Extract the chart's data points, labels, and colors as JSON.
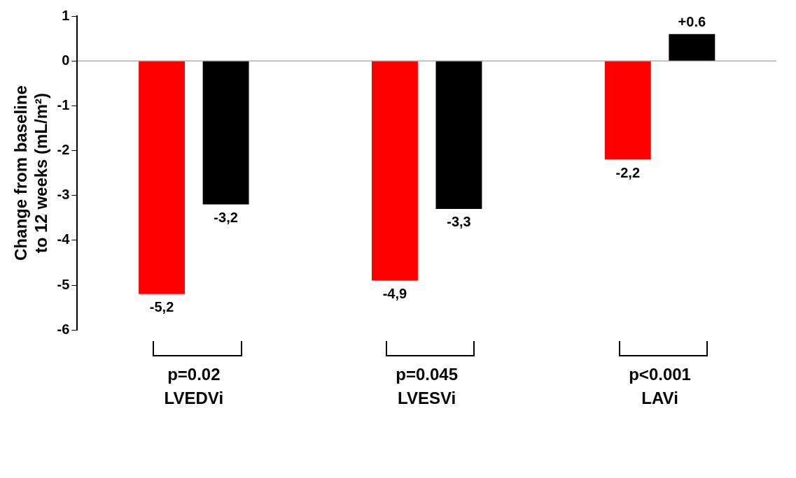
{
  "chart_data": {
    "type": "bar",
    "ylabel": "Change from baseline to 12 weeks (mL/m²)",
    "categories": [
      "LVEDVi",
      "LVESVi",
      "LAVi"
    ],
    "series": [
      {
        "color": "#ff0000",
        "values": [
          -5.2,
          -4.9,
          -2.2
        ],
        "value_labels": [
          "-5,2",
          "-4,9",
          "-2,2"
        ]
      },
      {
        "color": "#000000",
        "values": [
          -3.2,
          -3.3,
          0.6
        ],
        "value_labels": [
          "-3,2",
          "-3,3",
          "+0.6"
        ]
      }
    ],
    "ylim": [
      -6,
      1
    ],
    "yticks": [
      -6,
      -5,
      -4,
      -3,
      -2,
      -1,
      0,
      1
    ],
    "legend": false,
    "annotations": [
      "p=0.02",
      "p=0.045",
      "p<0.001"
    ]
  }
}
